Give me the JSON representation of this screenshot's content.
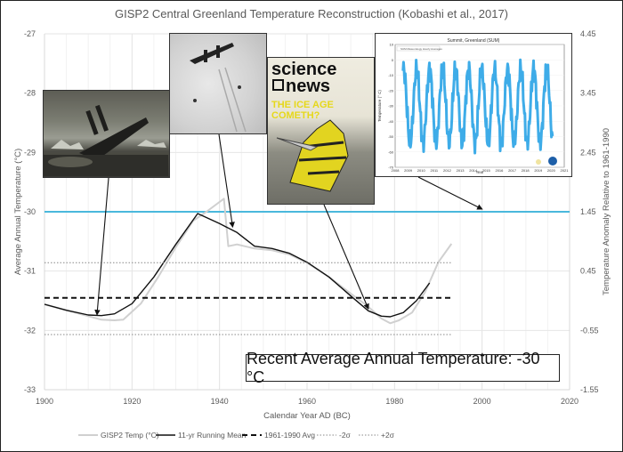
{
  "chart_data": {
    "type": "line",
    "title": "GISP2 Central Greenland Temperature Reconstruction (Kobashi et al., 2017)",
    "xlabel": "Calendar Year AD (BC)",
    "ylabel": "Average Annual Temperature (°C)",
    "y2label": "Temperature Anomaly Relative to 1961-1990",
    "xlim": [
      1900,
      2020
    ],
    "ylim": [
      -33,
      -27
    ],
    "y2lim": [
      -1.55,
      4.45
    ],
    "xticks": [
      "1900",
      "1920",
      "1940",
      "1960",
      "1980",
      "2000",
      "2020"
    ],
    "yticks": [
      "-27",
      "-28",
      "-29",
      "-30",
      "-31",
      "-32",
      "-33"
    ],
    "y2ticks": [
      "4.45",
      "3.45",
      "2.45",
      "1.45",
      "0.45",
      "-0.55",
      "-1.55"
    ],
    "grid": true,
    "legend_position": "bottom",
    "series": [
      {
        "name": "GISP2 Temp (°C)",
        "style": "solid-gray",
        "color": "#d0d0d0",
        "x": [
          1900,
          1905,
          1910,
          1913,
          1916,
          1918,
          1922,
          1926,
          1930,
          1934,
          1937,
          1941,
          1942,
          1944,
          1948,
          1952,
          1956,
          1960,
          1965,
          1970,
          1974,
          1977,
          1979,
          1981,
          1984,
          1987,
          1990,
          1993
        ],
        "values": [
          -31.56,
          -31.66,
          -31.76,
          -31.82,
          -31.83,
          -31.82,
          -31.55,
          -31.1,
          -30.6,
          -30.15,
          -30.0,
          -29.78,
          -30.58,
          -30.55,
          -30.62,
          -30.65,
          -30.72,
          -30.86,
          -31.1,
          -31.38,
          -31.6,
          -31.8,
          -31.88,
          -31.83,
          -31.7,
          -31.35,
          -30.85,
          -30.54
        ]
      },
      {
        "name": "11-yr Running Mean",
        "style": "solid-black",
        "color": "#111111",
        "x": [
          1900,
          1905,
          1910,
          1913,
          1916,
          1920,
          1925,
          1930,
          1935,
          1940,
          1944,
          1948,
          1952,
          1956,
          1960,
          1965,
          1970,
          1974,
          1977,
          1979,
          1982,
          1985,
          1988
        ],
        "values": [
          -31.56,
          -31.66,
          -31.74,
          -31.75,
          -31.72,
          -31.55,
          -31.1,
          -30.55,
          -30.03,
          -30.2,
          -30.35,
          -30.58,
          -30.62,
          -30.7,
          -30.85,
          -31.1,
          -31.42,
          -31.67,
          -31.76,
          -31.77,
          -31.7,
          -31.5,
          -31.2
        ]
      },
      {
        "name": "1961-1990 Avg",
        "style": "dashed-black",
        "color": "#111111",
        "x": [
          1900,
          1993
        ],
        "values": [
          -31.45,
          -31.45
        ]
      },
      {
        "name": "-2σ",
        "style": "dotted-gray",
        "color": "#888888",
        "x": [
          1900,
          1993
        ],
        "values": [
          -32.07,
          -32.07
        ]
      },
      {
        "name": "+2σ",
        "style": "dotted-gray",
        "color": "#888888",
        "x": [
          1900,
          1993
        ],
        "values": [
          -30.86,
          -30.86
        ]
      }
    ],
    "reference_line": {
      "name": "Recent average",
      "value": -30,
      "color": "#4ab8dc",
      "x": [
        1900,
        2020
      ]
    },
    "annotations": [
      {
        "target_year": 1912,
        "target_value": -31.78,
        "image": "titanic-sinking-illustration"
      },
      {
        "target_year": 1943,
        "target_value": -30.3,
        "image": "aircraft-on-ice-sheet-photo"
      },
      {
        "target_year": 1974,
        "target_value": -31.68,
        "image": "science-news-ice-age-cover"
      },
      {
        "target_year": 2000,
        "target_value": -30,
        "image": "summit-greenland-temperature-plot"
      }
    ]
  },
  "callout": {
    "text": "Recent Average Annual Temperature: -30 °C"
  },
  "science_news": {
    "word1": "science",
    "word2": "news",
    "headline1": "THE ICE AGE",
    "headline2": "COMETH?"
  },
  "summit_plot": {
    "title": "Summit, Greenland (SUM)",
    "legend": "SUM Meteorology Hourly Averages",
    "ylabel": "Temperature (° C)",
    "xlabel": "Year",
    "yticks": [
      "10",
      "0",
      "-10",
      "-20",
      "-30",
      "-40",
      "-50",
      "-60",
      "-70"
    ],
    "xticks": [
      "2008",
      "2009",
      "2010",
      "2011",
      "2012",
      "2013",
      "2014",
      "2015",
      "2016",
      "2017",
      "2018",
      "2019",
      "2020",
      "2021"
    ],
    "color": "#29a3e6"
  },
  "legend_labels": [
    "GISP2 Temp (°C)",
    "11-yr Running Mean",
    "1961-1990 Avg",
    "-2σ",
    "+2σ"
  ]
}
